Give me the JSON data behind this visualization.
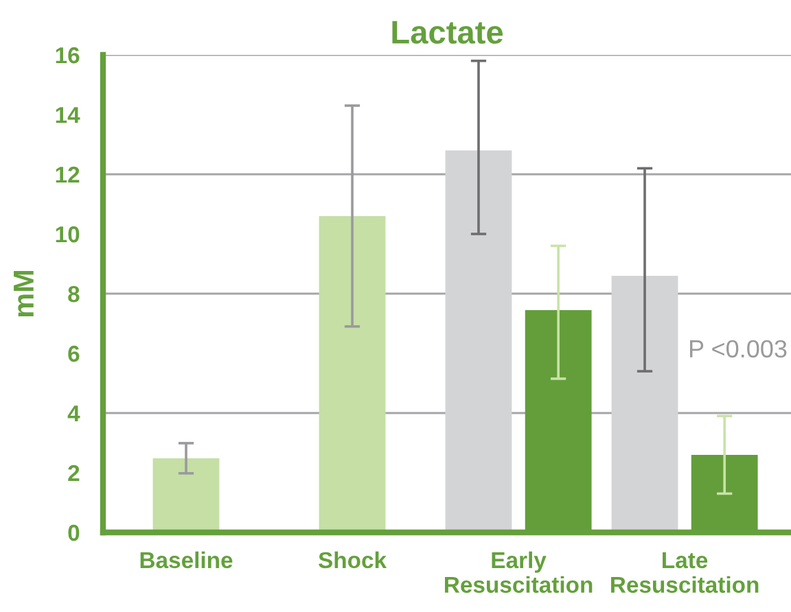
{
  "chart_data": {
    "type": "bar",
    "title": "Lactate",
    "ylabel": "mM",
    "categories": [
      "Baseline",
      "Shock",
      "Early\nResuscitation",
      "Late\nResuscitation"
    ],
    "series": [
      {
        "colors": [
          "#c5dfa5",
          "#c5dfa5",
          "#d3d4d6",
          "#d3d4d6"
        ],
        "values": [
          2.48,
          10.6,
          12.8,
          8.6
        ],
        "errors": [
          [
            1.98,
            2.99
          ],
          [
            6.9,
            14.3
          ],
          [
            10.0,
            15.8
          ],
          [
            5.4,
            12.2
          ]
        ]
      },
      {
        "color": "#639e3b",
        "values": [
          null,
          null,
          7.45,
          2.6
        ],
        "errors": [
          null,
          null,
          [
            5.15,
            9.6
          ],
          [
            1.3,
            3.9
          ]
        ]
      }
    ],
    "ylim": [
      0,
      16
    ],
    "yticks": [
      0,
      2,
      4,
      6,
      8,
      10,
      12,
      14,
      16
    ],
    "grid": "y",
    "annotations": [
      "P <0.003"
    ]
  }
}
